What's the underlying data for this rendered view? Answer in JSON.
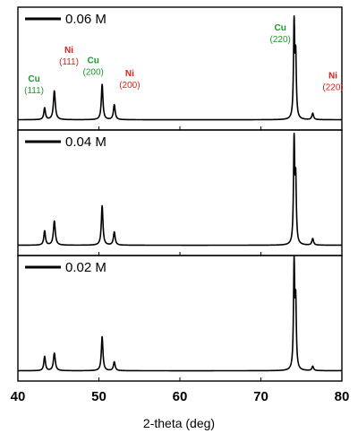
{
  "chart_data": {
    "type": "line",
    "xlabel": "2-theta (deg)",
    "xlim": [
      40,
      80
    ],
    "x_ticks": [
      "40",
      "50",
      "60",
      "70",
      "80"
    ],
    "annotation_colors": {
      "Cu": "#1a9a2a",
      "Ni": "#e0201a"
    },
    "panels": [
      {
        "legend": "0.06 M",
        "peaks": [
          {
            "x": 43.3,
            "h": 0.11,
            "w": 0.12
          },
          {
            "x": 44.5,
            "h": 0.27,
            "w": 0.14
          },
          {
            "x": 50.4,
            "h": 0.33,
            "w": 0.12
          },
          {
            "x": 51.9,
            "h": 0.14,
            "w": 0.13
          },
          {
            "x": 74.1,
            "h": 0.88,
            "w": 0.09
          },
          {
            "x": 74.3,
            "h": 0.55,
            "w": 0.09
          },
          {
            "x": 76.4,
            "h": 0.06,
            "w": 0.12
          }
        ],
        "annotations": [
          {
            "el": "Cu",
            "idx": "(111)",
            "x": 42.0,
            "line": 0.37
          },
          {
            "el": "Ni",
            "idx": "(111)",
            "x": 46.3,
            "line": 0.64
          },
          {
            "el": "Cu",
            "idx": "(200)",
            "x": 49.3,
            "line": 0.54
          },
          {
            "el": "Ni",
            "idx": "(200)",
            "x": 53.8,
            "line": 0.42
          },
          {
            "el": "Cu",
            "idx": "(220)",
            "x": 72.4,
            "line": 0.85
          },
          {
            "el": "Ni",
            "idx": "(220)",
            "x": 78.9,
            "line": 0.4
          }
        ]
      },
      {
        "legend": "0.04 M",
        "peaks": [
          {
            "x": 43.3,
            "h": 0.13,
            "w": 0.12
          },
          {
            "x": 44.5,
            "h": 0.22,
            "w": 0.14
          },
          {
            "x": 50.4,
            "h": 0.36,
            "w": 0.12
          },
          {
            "x": 51.9,
            "h": 0.12,
            "w": 0.13
          },
          {
            "x": 74.1,
            "h": 0.93,
            "w": 0.09
          },
          {
            "x": 74.3,
            "h": 0.55,
            "w": 0.09
          },
          {
            "x": 76.4,
            "h": 0.06,
            "w": 0.12
          }
        ],
        "annotations": []
      },
      {
        "legend": "0.02 M",
        "peaks": [
          {
            "x": 43.3,
            "h": 0.13,
            "w": 0.12
          },
          {
            "x": 44.5,
            "h": 0.16,
            "w": 0.14
          },
          {
            "x": 50.4,
            "h": 0.31,
            "w": 0.12
          },
          {
            "x": 51.9,
            "h": 0.08,
            "w": 0.13
          },
          {
            "x": 74.1,
            "h": 0.95,
            "w": 0.09
          },
          {
            "x": 74.3,
            "h": 0.58,
            "w": 0.09
          },
          {
            "x": 76.4,
            "h": 0.04,
            "w": 0.12
          }
        ],
        "annotations": []
      }
    ]
  }
}
